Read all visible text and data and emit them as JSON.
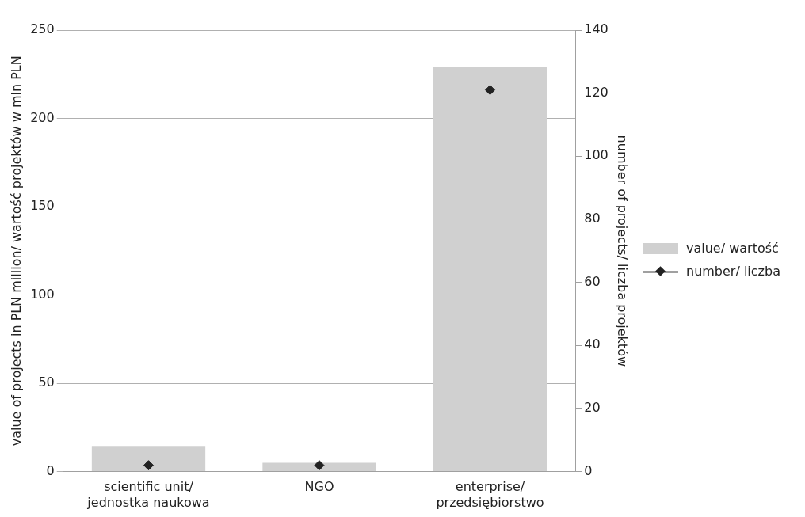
{
  "chart_data": {
    "type": "bar",
    "categories": [
      "scientific unit/ jednostka naukowa",
      "NGO",
      "enterprise/ przedsiębiorstwo"
    ],
    "ylabel": "value of projects in PLN million/ wartość projektów w mln PLN",
    "y2label": "number of projects/ liczba projektów",
    "ylim": [
      0,
      250
    ],
    "yticks": [
      0,
      50,
      100,
      150,
      200,
      250
    ],
    "y2lim": [
      0,
      140
    ],
    "y2ticks": [
      0,
      20,
      40,
      60,
      80,
      100,
      120,
      140
    ],
    "grid": "y",
    "legend": "right",
    "series": [
      {
        "name": "value/ wartość",
        "color": "#d0d0d0",
        "values": [
          14.5,
          5,
          229
        ]
      },
      {
        "name": "number/ liczba",
        "type": "scatter",
        "axis": "y2",
        "marker": "diamond",
        "color": "#222222",
        "values": [
          2,
          2,
          121
        ]
      }
    ]
  }
}
